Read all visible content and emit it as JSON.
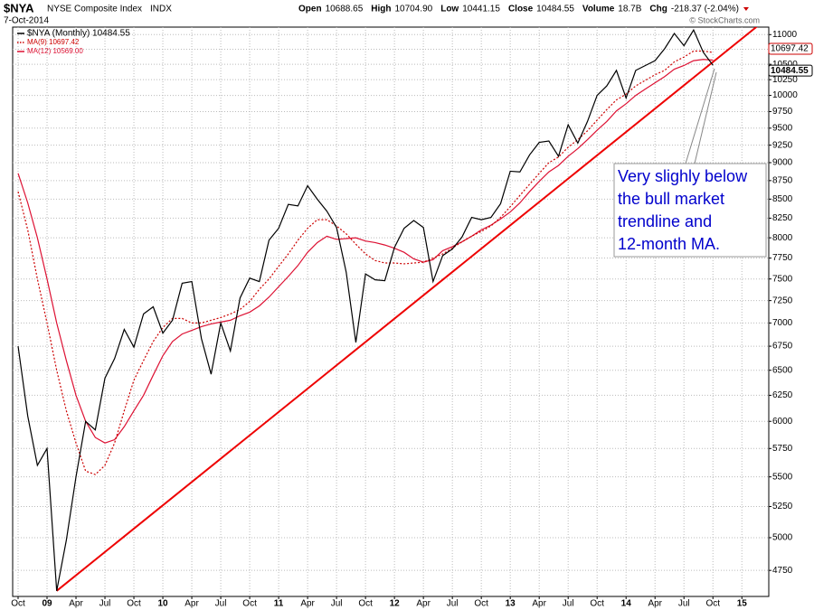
{
  "chart_data": {
    "type": "line",
    "header": {
      "symbol": "$NYA",
      "name": "NYSE Composite Index",
      "exchange": "INDX",
      "date": "7-Oct-2014",
      "quote": [
        {
          "label": "Open",
          "value": "10688.65"
        },
        {
          "label": "High",
          "value": "10704.90"
        },
        {
          "label": "Low",
          "value": "10441.15"
        },
        {
          "label": "Close",
          "value": "10484.55"
        },
        {
          "label": "Volume",
          "value": "18.7B"
        },
        {
          "label": "Chg",
          "value": "-218.37 (-2.04%)"
        }
      ],
      "credit": "© StockCharts.com"
    },
    "log_scale": true,
    "grid": true,
    "legend": "top-left",
    "categories": [
      "Oct",
      null,
      null,
      "09",
      null,
      null,
      "Apr",
      null,
      null,
      "Jul",
      null,
      null,
      "Oct",
      null,
      null,
      "10",
      null,
      null,
      "Apr",
      null,
      null,
      "Jul",
      null,
      null,
      "Oct",
      null,
      null,
      "11",
      null,
      null,
      "Apr",
      null,
      null,
      "Jul",
      null,
      null,
      "Oct",
      null,
      null,
      "12",
      null,
      null,
      "Apr",
      null,
      null,
      "Jul",
      null,
      null,
      "Oct",
      null,
      null,
      "13",
      null,
      null,
      "Apr",
      null,
      null,
      "Jul",
      null,
      null,
      "Oct",
      null,
      null,
      "14",
      null,
      null,
      "Apr",
      null,
      null,
      "Jul",
      null,
      null,
      "Oct",
      null,
      null,
      "15",
      null,
      null
    ],
    "series": [
      {
        "name": "$NYA (Monthly) 10484.55",
        "color": "#000000",
        "style": "solid",
        "last_label": "10484.55",
        "values": [
          6750,
          6050,
          5600,
          5750,
          4600,
          4980,
          5500,
          6000,
          5920,
          6420,
          6620,
          6930,
          6740,
          7100,
          7180,
          6890,
          7030,
          7450,
          7470,
          6830,
          6460,
          7000,
          6700,
          7280,
          7510,
          7470,
          7970,
          8120,
          8430,
          8410,
          8680,
          8500,
          8340,
          8130,
          7580,
          6790,
          7560,
          7490,
          7480,
          7880,
          8120,
          8220,
          8130,
          7470,
          7780,
          7860,
          8010,
          8260,
          8230,
          8260,
          8440,
          8880,
          8870,
          9110,
          9290,
          9310,
          9090,
          9550,
          9280,
          9600,
          10000,
          10150,
          10400,
          9960,
          10400,
          10480,
          10560,
          10760,
          11020,
          10810,
          11080,
          10700,
          10484.55,
          null,
          null,
          null,
          null,
          null
        ]
      },
      {
        "name": "MA(9) 10697.42",
        "color": "#cc0000",
        "style": "dotted",
        "last_label": "10697.42",
        "values": [
          8600,
          8100,
          7500,
          7000,
          6500,
          6100,
          5800,
          5550,
          5520,
          5600,
          5800,
          6100,
          6400,
          6600,
          6800,
          6950,
          7050,
          7050,
          7000,
          7000,
          7030,
          7060,
          7100,
          7150,
          7240,
          7380,
          7500,
          7650,
          7800,
          7970,
          8120,
          8230,
          8230,
          8150,
          8050,
          7920,
          7800,
          7720,
          7690,
          7690,
          7680,
          7690,
          7700,
          7750,
          7800,
          7870,
          7950,
          8020,
          8080,
          8150,
          8260,
          8400,
          8550,
          8700,
          8850,
          9000,
          9080,
          9220,
          9330,
          9460,
          9620,
          9780,
          9930,
          10020,
          10150,
          10240,
          10330,
          10400,
          10540,
          10620,
          10720,
          10720,
          10697.42,
          null,
          null,
          null,
          null,
          null
        ]
      },
      {
        "name": "MA(12) 10569.00",
        "color": "#dd1133",
        "style": "solid",
        "values": [
          8850,
          8450,
          8000,
          7500,
          7000,
          6600,
          6250,
          6000,
          5850,
          5800,
          5830,
          5950,
          6100,
          6250,
          6450,
          6650,
          6800,
          6880,
          6920,
          6960,
          6990,
          7010,
          7030,
          7080,
          7120,
          7190,
          7290,
          7410,
          7530,
          7660,
          7820,
          7940,
          8020,
          7980,
          7990,
          8000,
          7960,
          7940,
          7910,
          7870,
          7820,
          7740,
          7700,
          7730,
          7840,
          7890,
          7950,
          8020,
          8100,
          8160,
          8240,
          8330,
          8450,
          8600,
          8740,
          8870,
          8960,
          9090,
          9200,
          9330,
          9470,
          9600,
          9760,
          9870,
          10000,
          10100,
          10200,
          10300,
          10420,
          10480,
          10560,
          10580,
          10569,
          null,
          null,
          null,
          null,
          null
        ]
      }
    ],
    "trendline": {
      "color": "#ee0000",
      "x": [
        4,
        77
      ],
      "values": [
        4600,
        11200
      ]
    },
    "annotation": {
      "lines": [
        "Very slighly below",
        "the bull market",
        "trendline and",
        "12-month MA."
      ],
      "color": "#0000cc"
    },
    "ylim": [
      4560,
      11130
    ],
    "yticks": [
      4750,
      5000,
      5250,
      5500,
      5750,
      6000,
      6250,
      6500,
      6750,
      7000,
      7250,
      7500,
      7750,
      8000,
      8250,
      8500,
      8750,
      9000,
      9250,
      9500,
      9750,
      10000,
      10250,
      10500,
      10750,
      11000
    ]
  }
}
